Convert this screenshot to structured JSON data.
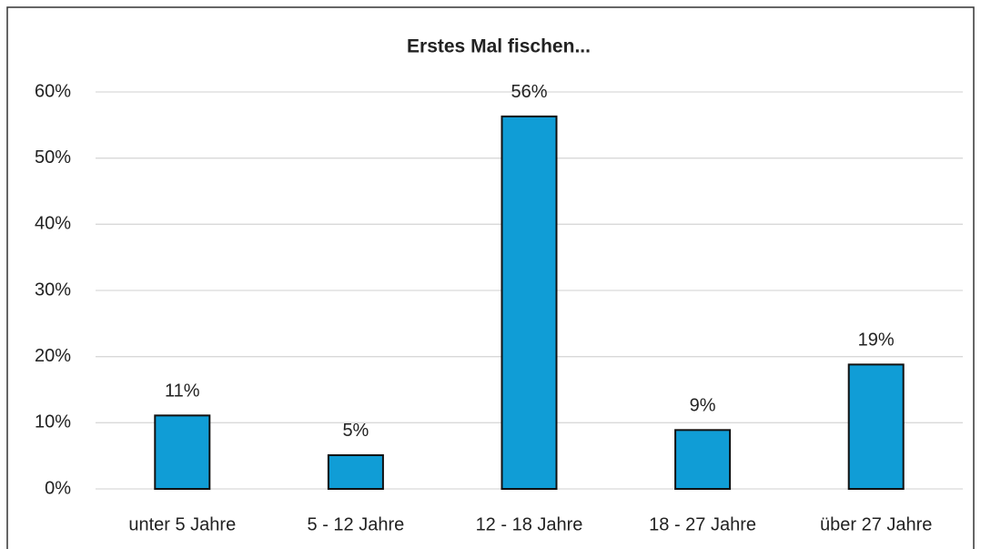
{
  "chart_data": {
    "type": "bar",
    "title": "Erstes Mal fischen...",
    "categories": [
      "unter 5 Jahre",
      "5 - 12 Jahre",
      "12 - 18 Jahre",
      "18 - 27 Jahre",
      "über 27 Jahre"
    ],
    "values": [
      11.1,
      5.1,
      56.3,
      8.9,
      18.8
    ],
    "value_labels": [
      "11%",
      "5%",
      "56%",
      "9%",
      "19%"
    ],
    "color": "#109dd6",
    "ylim": [
      0,
      60
    ],
    "yticks": [
      {
        "value": 0,
        "label": "0%"
      },
      {
        "value": 10,
        "label": "10%"
      },
      {
        "value": 20,
        "label": "20%"
      },
      {
        "value": 30,
        "label": "30%"
      },
      {
        "value": 40,
        "label": "40%"
      },
      {
        "value": 50,
        "label": "50%"
      },
      {
        "value": 60,
        "label": "60%"
      }
    ],
    "grid": true
  }
}
